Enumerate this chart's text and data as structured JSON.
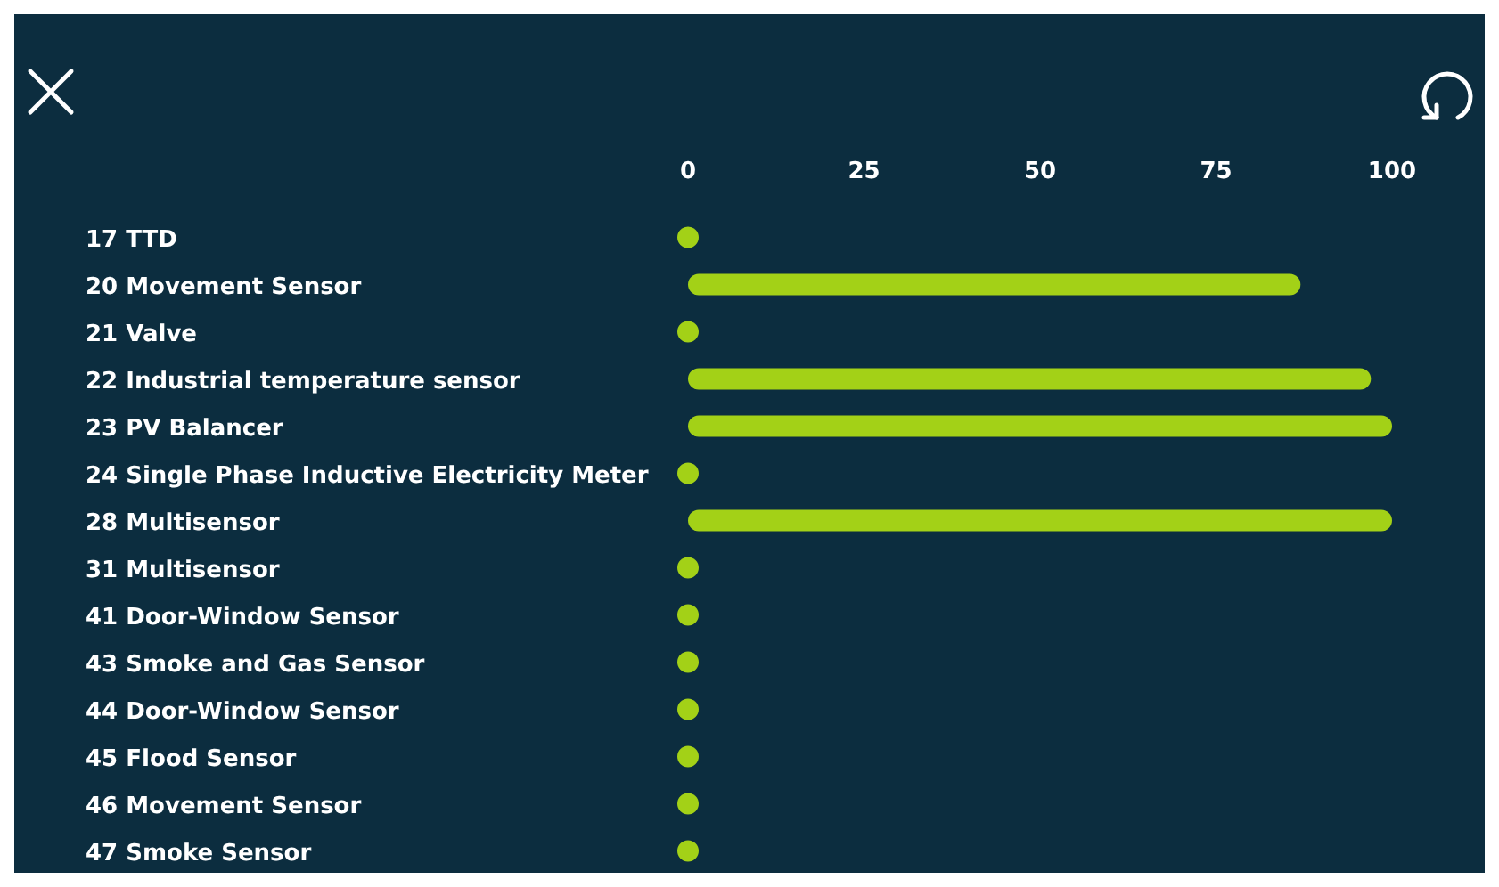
{
  "chart_data": {
    "type": "bar",
    "orientation": "horizontal",
    "categories": [
      "17 TTD",
      "20 Movement Sensor",
      "21 Valve",
      "22 Industrial temperature sensor",
      "23 PV Balancer",
      "24 Single Phase Inductive Electricity Meter",
      "28 Multisensor",
      "31 Multisensor",
      "41 Door-Window Sensor",
      "43 Smoke and Gas Sensor",
      "44 Door-Window Sensor",
      "45 Flood Sensor",
      "46 Movement Sensor",
      "47 Smoke Sensor"
    ],
    "series": [
      {
        "color": "#a3d117",
        "values": [
          null,
          87,
          null,
          97,
          100,
          null,
          100,
          null,
          null,
          null,
          null,
          null,
          null,
          null
        ]
      },
      {
        "type": "scatter",
        "color": "#a3d117",
        "marker": "circle",
        "values": [
          0,
          null,
          0,
          null,
          null,
          0,
          null,
          0,
          0,
          0,
          0,
          0,
          0,
          0
        ]
      }
    ],
    "xlim": [
      0,
      100
    ],
    "xticks": [
      0,
      25,
      50,
      75,
      100
    ],
    "grid": false
  }
}
